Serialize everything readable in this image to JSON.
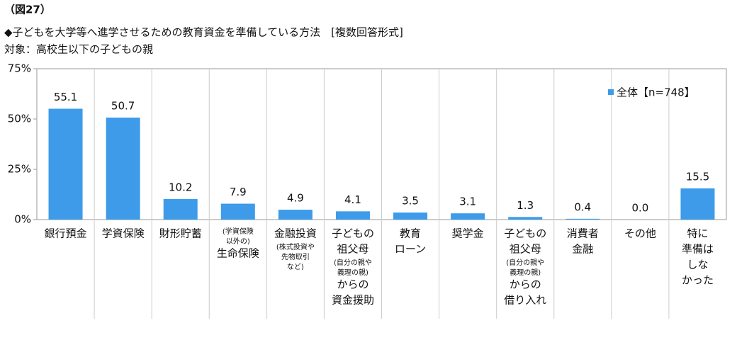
{
  "chart_data": {
    "type": "bar",
    "figure_label": "（図27）",
    "title": "◆子どもを大学等へ進学させるための教育資金を準備している方法　[複数回答形式]",
    "subtitle": "対象：高校生以下の子どもの親",
    "categories": [
      [
        "銀行預金"
      ],
      [
        "学資保険"
      ],
      [
        "財形貯蓄"
      ],
      [
        "(学資保険",
        "以外の)",
        "生命保険"
      ],
      [
        "金融投資",
        "(株式投資や",
        "先物取引",
        "など)"
      ],
      [
        "子どもの",
        "祖父母",
        "(自分の親や",
        "義理の親)",
        "からの",
        "資金援助"
      ],
      [
        "教育",
        "ローン"
      ],
      [
        "奨学金"
      ],
      [
        "子どもの",
        "祖父母",
        "(自分の親や",
        "義理の親)",
        "からの",
        "借り入れ"
      ],
      [
        "消費者",
        "金融"
      ],
      [
        "その他"
      ],
      [
        "特に",
        "準備は",
        "しな",
        "かった"
      ]
    ],
    "series": [
      {
        "name": "全体【n=748】",
        "color": "#3d9be9",
        "values": [
          55.1,
          50.7,
          10.2,
          7.9,
          4.9,
          4.1,
          3.5,
          3.1,
          1.3,
          0.4,
          0.0,
          15.5
        ],
        "value_labels": [
          "55.1",
          "50.7",
          "10.2",
          "7.9",
          "4.9",
          "4.1",
          "3.5",
          "3.1",
          "1.3",
          "0.4",
          "0.0",
          "15.5"
        ]
      }
    ],
    "ylim": [
      0,
      75
    ],
    "yticks": [
      {
        "value": 0,
        "label": "0%"
      },
      {
        "value": 25,
        "label": "25%"
      },
      {
        "value": 50,
        "label": "50%"
      },
      {
        "value": 75,
        "label": "75%"
      }
    ],
    "legend_position": "top-right"
  }
}
